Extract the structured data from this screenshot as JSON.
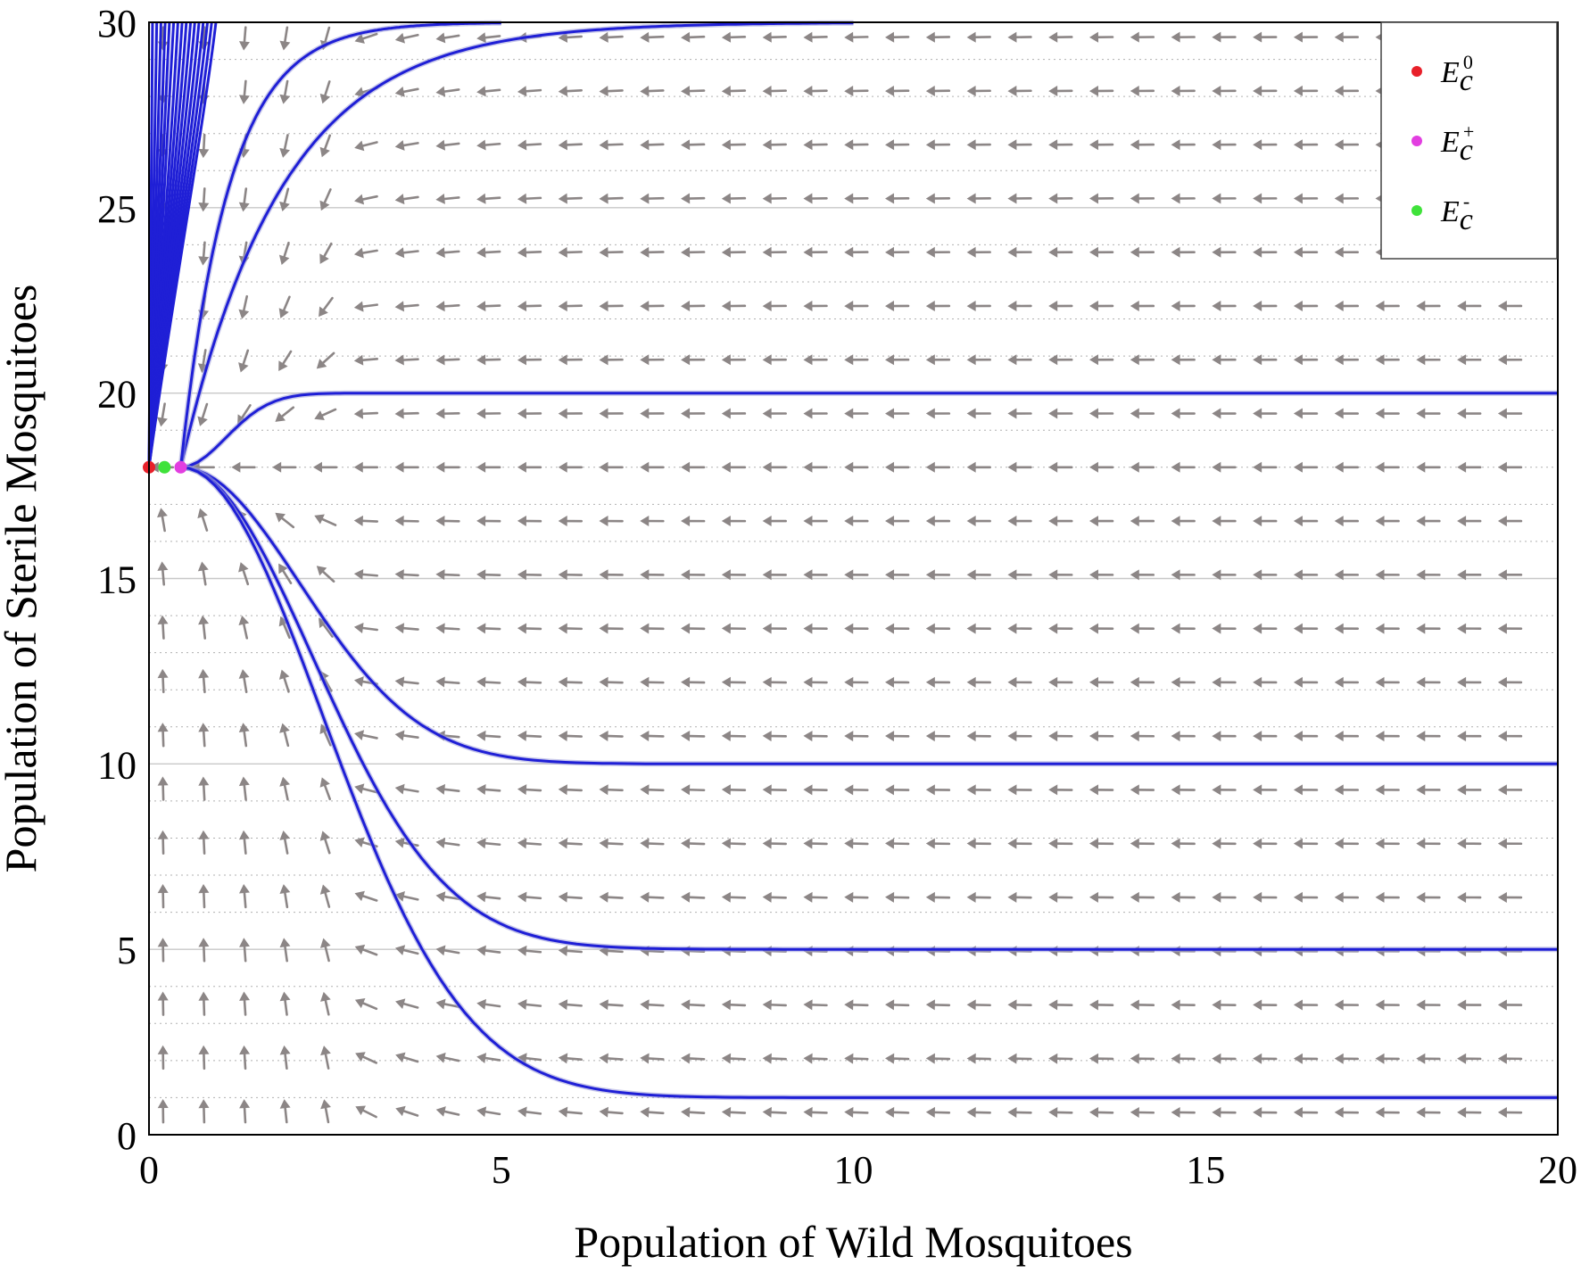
{
  "chart_data": {
    "type": "scatter",
    "title": "",
    "xlabel": "Population of Wild Mosquitoes",
    "ylabel": "Population of Sterile Mosquitoes",
    "xlim": [
      0,
      20
    ],
    "ylim": [
      0,
      30
    ],
    "x_ticks": [
      "0",
      "5",
      "10",
      "15",
      "20"
    ],
    "y_ticks": [
      "0",
      "5",
      "10",
      "15",
      "20",
      "25",
      "30"
    ],
    "grid": true,
    "legend_position": "top-right",
    "equilibria": [
      {
        "name": "E",
        "sub": "c",
        "sup": "0",
        "x": 0.0,
        "y": 18.0,
        "color": "#e8202a"
      },
      {
        "name": "E",
        "sub": "c",
        "sup": "+",
        "x": 0.45,
        "y": 18.0,
        "color": "#e23ee0"
      },
      {
        "name": "E",
        "sub": "c",
        "sup": "-",
        "x": 0.22,
        "y": 18.0,
        "color": "#3fe23a"
      }
    ],
    "trajectories": [
      {
        "start": [
          20,
          20
        ],
        "end": [
          0.45,
          18
        ]
      },
      {
        "start": [
          20,
          10
        ],
        "end": [
          0.45,
          18
        ]
      },
      {
        "start": [
          20,
          5
        ],
        "end": [
          0.45,
          18
        ]
      },
      {
        "start": [
          20,
          1
        ],
        "end": [
          0.45,
          18
        ]
      },
      {
        "start": [
          10,
          30
        ],
        "end": [
          0.45,
          18
        ]
      },
      {
        "start": [
          5,
          30
        ],
        "end": [
          0.45,
          18
        ]
      }
    ],
    "vector_field_color": "#8c8686",
    "trajectory_color": "#1f1fd6"
  }
}
